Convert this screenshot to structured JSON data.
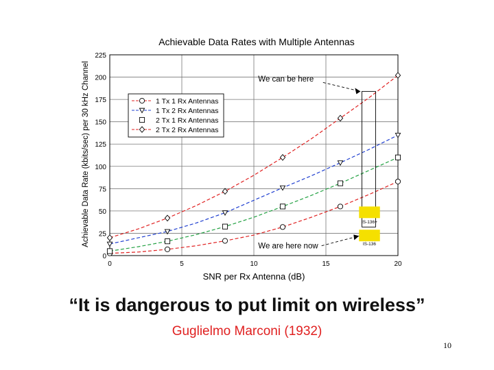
{
  "chart_data": {
    "type": "line",
    "title": "Achievable Data Rates with Multiple Antennas",
    "xlabel": "SNR per Rx Antenna (dB)",
    "ylabel": "Achievable Data Rate (kbits/sec) per 30 kHz Channel",
    "xlim": [
      0,
      20
    ],
    "ylim": [
      0,
      225
    ],
    "xticks": [
      "0",
      "5",
      "10",
      "15",
      "20"
    ],
    "yticks": [
      "0",
      "25",
      "50",
      "75",
      "100",
      "125",
      "150",
      "175",
      "200",
      "225"
    ],
    "grid": true,
    "legend_position": "top-left",
    "x": [
      0,
      2,
      4,
      6,
      8,
      10,
      12,
      14,
      16,
      18,
      20
    ],
    "series": [
      {
        "name": "1 Tx 1 Rx Antennas",
        "marker": "circle",
        "color": "#e02020",
        "values": [
          2.5,
          4,
          7,
          11,
          16.5,
          23,
          32,
          43,
          55,
          68.5,
          83
        ]
      },
      {
        "name": "1 Tx 2 Rx Antennas",
        "marker": "triangle-down",
        "color": "#1f3fd0",
        "values": [
          13,
          20,
          27,
          36.5,
          48,
          62,
          76,
          89.5,
          104,
          119,
          135
        ]
      },
      {
        "name": "2 Tx 1 Rx Antennas",
        "marker": "square",
        "color": "#20a040",
        "values": [
          5,
          10,
          16,
          23.5,
          32.5,
          43,
          55,
          67.5,
          81,
          95.5,
          110
        ]
      },
      {
        "name": "2 Tx 2 Rx Antennas",
        "marker": "diamond",
        "color": "#e02020",
        "values": [
          20,
          30,
          42,
          56,
          72,
          90,
          110,
          131,
          154,
          177,
          202
        ]
      }
    ],
    "annotations": [
      {
        "text": "We can be here"
      },
      {
        "text": "We are here now"
      },
      {
        "text": "IS-136+"
      },
      {
        "text": "IS-136"
      }
    ],
    "colors": {
      "highlight_box": "#f5e000",
      "grid": "#777777"
    }
  },
  "quote": "“It is dangerous to put limit on wireless”",
  "author": {
    "text": "Guglielmo Marconi (1932)",
    "color": "#e02020"
  },
  "page_number": "10"
}
